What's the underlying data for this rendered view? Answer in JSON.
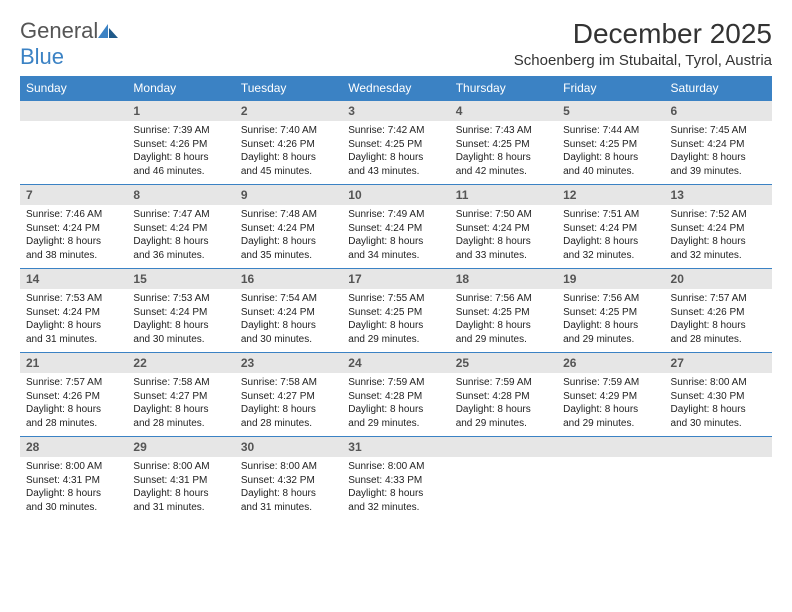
{
  "brand": {
    "word1": "General",
    "word2": "Blue"
  },
  "title": "December 2025",
  "location": "Schoenberg im Stubaital, Tyrol, Austria",
  "colors": {
    "header_bg": "#3b82c4",
    "header_fg": "#ffffff",
    "daynum_bg": "#e6e6e6",
    "border": "#3b82c4",
    "text": "#222222",
    "bg": "#ffffff"
  },
  "daysOfWeek": [
    "Sunday",
    "Monday",
    "Tuesday",
    "Wednesday",
    "Thursday",
    "Friday",
    "Saturday"
  ],
  "weeks": [
    {
      "nums": [
        "",
        "1",
        "2",
        "3",
        "4",
        "5",
        "6"
      ],
      "cells": [
        {},
        {
          "sr": "Sunrise: 7:39 AM",
          "ss": "Sunset: 4:26 PM",
          "d1": "Daylight: 8 hours",
          "d2": "and 46 minutes."
        },
        {
          "sr": "Sunrise: 7:40 AM",
          "ss": "Sunset: 4:26 PM",
          "d1": "Daylight: 8 hours",
          "d2": "and 45 minutes."
        },
        {
          "sr": "Sunrise: 7:42 AM",
          "ss": "Sunset: 4:25 PM",
          "d1": "Daylight: 8 hours",
          "d2": "and 43 minutes."
        },
        {
          "sr": "Sunrise: 7:43 AM",
          "ss": "Sunset: 4:25 PM",
          "d1": "Daylight: 8 hours",
          "d2": "and 42 minutes."
        },
        {
          "sr": "Sunrise: 7:44 AM",
          "ss": "Sunset: 4:25 PM",
          "d1": "Daylight: 8 hours",
          "d2": "and 40 minutes."
        },
        {
          "sr": "Sunrise: 7:45 AM",
          "ss": "Sunset: 4:24 PM",
          "d1": "Daylight: 8 hours",
          "d2": "and 39 minutes."
        }
      ]
    },
    {
      "nums": [
        "7",
        "8",
        "9",
        "10",
        "11",
        "12",
        "13"
      ],
      "cells": [
        {
          "sr": "Sunrise: 7:46 AM",
          "ss": "Sunset: 4:24 PM",
          "d1": "Daylight: 8 hours",
          "d2": "and 38 minutes."
        },
        {
          "sr": "Sunrise: 7:47 AM",
          "ss": "Sunset: 4:24 PM",
          "d1": "Daylight: 8 hours",
          "d2": "and 36 minutes."
        },
        {
          "sr": "Sunrise: 7:48 AM",
          "ss": "Sunset: 4:24 PM",
          "d1": "Daylight: 8 hours",
          "d2": "and 35 minutes."
        },
        {
          "sr": "Sunrise: 7:49 AM",
          "ss": "Sunset: 4:24 PM",
          "d1": "Daylight: 8 hours",
          "d2": "and 34 minutes."
        },
        {
          "sr": "Sunrise: 7:50 AM",
          "ss": "Sunset: 4:24 PM",
          "d1": "Daylight: 8 hours",
          "d2": "and 33 minutes."
        },
        {
          "sr": "Sunrise: 7:51 AM",
          "ss": "Sunset: 4:24 PM",
          "d1": "Daylight: 8 hours",
          "d2": "and 32 minutes."
        },
        {
          "sr": "Sunrise: 7:52 AM",
          "ss": "Sunset: 4:24 PM",
          "d1": "Daylight: 8 hours",
          "d2": "and 32 minutes."
        }
      ]
    },
    {
      "nums": [
        "14",
        "15",
        "16",
        "17",
        "18",
        "19",
        "20"
      ],
      "cells": [
        {
          "sr": "Sunrise: 7:53 AM",
          "ss": "Sunset: 4:24 PM",
          "d1": "Daylight: 8 hours",
          "d2": "and 31 minutes."
        },
        {
          "sr": "Sunrise: 7:53 AM",
          "ss": "Sunset: 4:24 PM",
          "d1": "Daylight: 8 hours",
          "d2": "and 30 minutes."
        },
        {
          "sr": "Sunrise: 7:54 AM",
          "ss": "Sunset: 4:24 PM",
          "d1": "Daylight: 8 hours",
          "d2": "and 30 minutes."
        },
        {
          "sr": "Sunrise: 7:55 AM",
          "ss": "Sunset: 4:25 PM",
          "d1": "Daylight: 8 hours",
          "d2": "and 29 minutes."
        },
        {
          "sr": "Sunrise: 7:56 AM",
          "ss": "Sunset: 4:25 PM",
          "d1": "Daylight: 8 hours",
          "d2": "and 29 minutes."
        },
        {
          "sr": "Sunrise: 7:56 AM",
          "ss": "Sunset: 4:25 PM",
          "d1": "Daylight: 8 hours",
          "d2": "and 29 minutes."
        },
        {
          "sr": "Sunrise: 7:57 AM",
          "ss": "Sunset: 4:26 PM",
          "d1": "Daylight: 8 hours",
          "d2": "and 28 minutes."
        }
      ]
    },
    {
      "nums": [
        "21",
        "22",
        "23",
        "24",
        "25",
        "26",
        "27"
      ],
      "cells": [
        {
          "sr": "Sunrise: 7:57 AM",
          "ss": "Sunset: 4:26 PM",
          "d1": "Daylight: 8 hours",
          "d2": "and 28 minutes."
        },
        {
          "sr": "Sunrise: 7:58 AM",
          "ss": "Sunset: 4:27 PM",
          "d1": "Daylight: 8 hours",
          "d2": "and 28 minutes."
        },
        {
          "sr": "Sunrise: 7:58 AM",
          "ss": "Sunset: 4:27 PM",
          "d1": "Daylight: 8 hours",
          "d2": "and 28 minutes."
        },
        {
          "sr": "Sunrise: 7:59 AM",
          "ss": "Sunset: 4:28 PM",
          "d1": "Daylight: 8 hours",
          "d2": "and 29 minutes."
        },
        {
          "sr": "Sunrise: 7:59 AM",
          "ss": "Sunset: 4:28 PM",
          "d1": "Daylight: 8 hours",
          "d2": "and 29 minutes."
        },
        {
          "sr": "Sunrise: 7:59 AM",
          "ss": "Sunset: 4:29 PM",
          "d1": "Daylight: 8 hours",
          "d2": "and 29 minutes."
        },
        {
          "sr": "Sunrise: 8:00 AM",
          "ss": "Sunset: 4:30 PM",
          "d1": "Daylight: 8 hours",
          "d2": "and 30 minutes."
        }
      ]
    },
    {
      "nums": [
        "28",
        "29",
        "30",
        "31",
        "",
        "",
        ""
      ],
      "cells": [
        {
          "sr": "Sunrise: 8:00 AM",
          "ss": "Sunset: 4:31 PM",
          "d1": "Daylight: 8 hours",
          "d2": "and 30 minutes."
        },
        {
          "sr": "Sunrise: 8:00 AM",
          "ss": "Sunset: 4:31 PM",
          "d1": "Daylight: 8 hours",
          "d2": "and 31 minutes."
        },
        {
          "sr": "Sunrise: 8:00 AM",
          "ss": "Sunset: 4:32 PM",
          "d1": "Daylight: 8 hours",
          "d2": "and 31 minutes."
        },
        {
          "sr": "Sunrise: 8:00 AM",
          "ss": "Sunset: 4:33 PM",
          "d1": "Daylight: 8 hours",
          "d2": "and 32 minutes."
        },
        {},
        {},
        {}
      ]
    }
  ]
}
